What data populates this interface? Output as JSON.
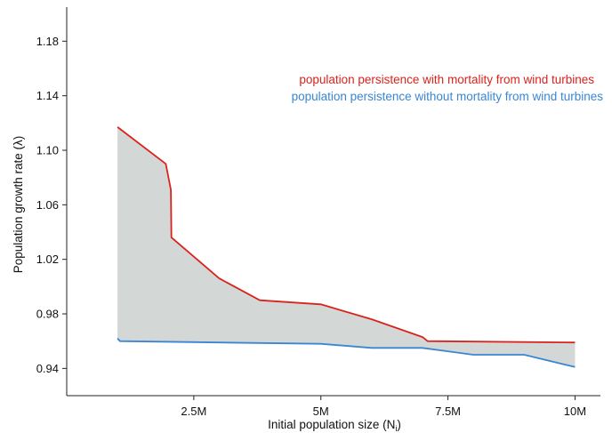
{
  "chart_data": {
    "type": "area",
    "xlabel_main": "Initial population size (N",
    "xlabel_sub": "i",
    "xlabel_end": ")",
    "ylabel": "Population growth rate (λ)",
    "xlim": [
      0,
      10500000
    ],
    "ylim": [
      0.92,
      1.205
    ],
    "x_ticks": [
      {
        "value": 2500000,
        "label": "2.5M"
      },
      {
        "value": 5000000,
        "label": "5M"
      },
      {
        "value": 7500000,
        "label": "7.5M"
      },
      {
        "value": 10000000,
        "label": "10M"
      }
    ],
    "y_ticks": [
      {
        "value": 0.94,
        "label": "0.94"
      },
      {
        "value": 0.98,
        "label": "0.98"
      },
      {
        "value": 1.02,
        "label": "1.02"
      },
      {
        "value": 1.06,
        "label": "1.06"
      },
      {
        "value": 1.1,
        "label": "1.10"
      },
      {
        "value": 1.14,
        "label": "1.14"
      },
      {
        "value": 1.18,
        "label": "1.18"
      }
    ],
    "band_color": "#d3d8d6",
    "series": [
      {
        "name": "population persistence with mortality from wind turbines",
        "color": "#d9231d",
        "x": [
          1000000,
          1950000,
          2050000,
          2060000,
          3000000,
          3800000,
          5000000,
          6000000,
          7000000,
          7100000,
          10000000
        ],
        "y": [
          1.117,
          1.09,
          1.071,
          1.036,
          1.006,
          0.99,
          0.987,
          0.976,
          0.963,
          0.96,
          0.959
        ]
      },
      {
        "name": "population persistence without mortality from wind turbines",
        "color": "#3a86d3",
        "x": [
          1000000,
          1050000,
          3000000,
          5000000,
          6000000,
          7000000,
          8000000,
          9000000,
          10000000
        ],
        "y": [
          0.962,
          0.96,
          0.959,
          0.958,
          0.955,
          0.955,
          0.95,
          0.95,
          0.941
        ]
      }
    ]
  }
}
